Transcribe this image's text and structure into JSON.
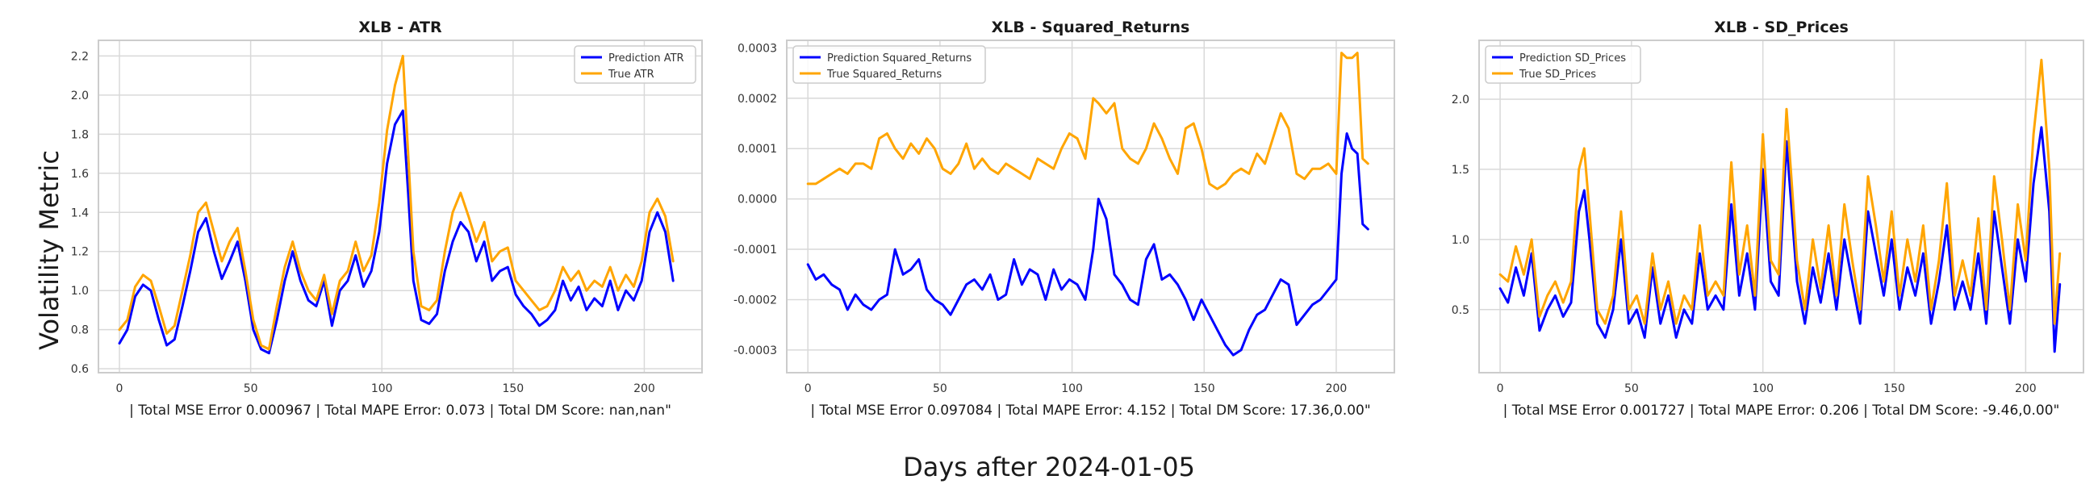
{
  "figure": {
    "ylabel": "Volatility Metric",
    "xlabel": "Days after 2024-01-05"
  },
  "colors": {
    "prediction": "#0000ff",
    "truth": "#ffa500",
    "grid": "#d9d9d9",
    "frame": "#cccccc"
  },
  "chart_data": [
    {
      "type": "line",
      "title": "XLB - ATR",
      "xlabel": "| Total MSE Error 0.000967 | Total MAPE Error: 0.073 | Total DM Score: nan,nan\"",
      "ylabel": "",
      "xlim": [
        -8,
        222
      ],
      "ylim": [
        0.58,
        2.28
      ],
      "xticks": [
        0,
        50,
        100,
        150,
        200
      ],
      "yticks": [
        0.6,
        0.8,
        1.0,
        1.2,
        1.4,
        1.6,
        1.8,
        2.0,
        2.2
      ],
      "ytick_decimals": 1,
      "grid": true,
      "legend_position": "top-right",
      "series": [
        {
          "name": "Prediction ATR",
          "color": "#0000ff",
          "x": [
            0,
            3,
            6,
            9,
            12,
            15,
            18,
            21,
            24,
            27,
            30,
            33,
            36,
            39,
            42,
            45,
            48,
            51,
            54,
            57,
            60,
            63,
            66,
            69,
            72,
            75,
            78,
            81,
            84,
            87,
            90,
            93,
            96,
            99,
            102,
            105,
            108,
            110,
            112,
            115,
            118,
            121,
            124,
            127,
            130,
            133,
            136,
            139,
            142,
            145,
            148,
            151,
            154,
            157,
            160,
            163,
            166,
            169,
            172,
            175,
            178,
            181,
            184,
            187,
            190,
            193,
            196,
            199,
            202,
            205,
            208,
            211
          ],
          "y": [
            0.73,
            0.8,
            0.97,
            1.03,
            1.0,
            0.85,
            0.72,
            0.75,
            0.92,
            1.1,
            1.3,
            1.37,
            1.2,
            1.06,
            1.15,
            1.25,
            1.05,
            0.8,
            0.7,
            0.68,
            0.85,
            1.05,
            1.2,
            1.05,
            0.95,
            0.92,
            1.05,
            0.82,
            1.0,
            1.05,
            1.18,
            1.02,
            1.1,
            1.3,
            1.65,
            1.85,
            1.92,
            1.5,
            1.05,
            0.85,
            0.83,
            0.88,
            1.1,
            1.25,
            1.35,
            1.3,
            1.15,
            1.25,
            1.05,
            1.1,
            1.12,
            0.98,
            0.92,
            0.88,
            0.82,
            0.85,
            0.9,
            1.05,
            0.95,
            1.02,
            0.9,
            0.96,
            0.92,
            1.05,
            0.9,
            1.0,
            0.95,
            1.05,
            1.3,
            1.4,
            1.3,
            1.05
          ]
        },
        {
          "name": "True ATR",
          "color": "#ffa500",
          "x": [
            0,
            3,
            6,
            9,
            12,
            15,
            18,
            21,
            24,
            27,
            30,
            33,
            36,
            39,
            42,
            45,
            48,
            51,
            54,
            57,
            60,
            63,
            66,
            69,
            72,
            75,
            78,
            81,
            84,
            87,
            90,
            93,
            96,
            99,
            102,
            105,
            108,
            110,
            112,
            115,
            118,
            121,
            124,
            127,
            130,
            133,
            136,
            139,
            142,
            145,
            148,
            151,
            154,
            157,
            160,
            163,
            166,
            169,
            172,
            175,
            178,
            181,
            184,
            187,
            190,
            193,
            196,
            199,
            202,
            205,
            208,
            211
          ],
          "y": [
            0.8,
            0.85,
            1.02,
            1.08,
            1.05,
            0.92,
            0.78,
            0.82,
            1.0,
            1.18,
            1.4,
            1.45,
            1.3,
            1.15,
            1.25,
            1.32,
            1.1,
            0.85,
            0.72,
            0.7,
            0.92,
            1.12,
            1.25,
            1.1,
            1.0,
            0.95,
            1.08,
            0.88,
            1.05,
            1.1,
            1.25,
            1.1,
            1.18,
            1.45,
            1.82,
            2.05,
            2.2,
            1.7,
            1.2,
            0.92,
            0.9,
            0.95,
            1.2,
            1.4,
            1.5,
            1.38,
            1.25,
            1.35,
            1.15,
            1.2,
            1.22,
            1.05,
            1.0,
            0.95,
            0.9,
            0.92,
            1.0,
            1.12,
            1.05,
            1.1,
            1.0,
            1.05,
            1.02,
            1.12,
            1.0,
            1.08,
            1.02,
            1.15,
            1.4,
            1.47,
            1.38,
            1.15
          ]
        }
      ]
    },
    {
      "type": "line",
      "title": "XLB - Squared_Returns",
      "xlabel": "| Total MSE Error 0.097084 | Total MAPE Error: 4.152 | Total DM Score: 17.36,0.00\"",
      "ylabel": "",
      "xlim": [
        -8,
        222
      ],
      "ylim": [
        -0.000345,
        0.000315
      ],
      "xticks": [
        0,
        50,
        100,
        150,
        200
      ],
      "yticks": [
        -0.0003,
        -0.0002,
        -0.0001,
        0.0,
        0.0001,
        0.0002,
        0.0003
      ],
      "ytick_decimals": 4,
      "grid": true,
      "legend_position": "top-left",
      "series": [
        {
          "name": "Prediction Squared_Returns",
          "color": "#0000ff",
          "x": [
            0,
            3,
            6,
            9,
            12,
            15,
            18,
            21,
            24,
            27,
            30,
            33,
            36,
            39,
            42,
            45,
            48,
            51,
            54,
            57,
            60,
            63,
            66,
            69,
            72,
            75,
            78,
            81,
            84,
            87,
            90,
            93,
            96,
            99,
            102,
            105,
            108,
            110,
            113,
            116,
            119,
            122,
            125,
            128,
            131,
            134,
            137,
            140,
            143,
            146,
            149,
            152,
            155,
            158,
            161,
            164,
            167,
            170,
            173,
            176,
            179,
            182,
            185,
            188,
            191,
            194,
            197,
            200,
            202,
            204,
            206,
            208,
            210,
            212
          ],
          "y": [
            -0.00013,
            -0.00016,
            -0.00015,
            -0.00017,
            -0.00018,
            -0.00022,
            -0.00019,
            -0.00021,
            -0.00022,
            -0.0002,
            -0.00019,
            -0.0001,
            -0.00015,
            -0.00014,
            -0.00012,
            -0.00018,
            -0.0002,
            -0.00021,
            -0.00023,
            -0.0002,
            -0.00017,
            -0.00016,
            -0.00018,
            -0.00015,
            -0.0002,
            -0.00019,
            -0.00012,
            -0.00017,
            -0.00014,
            -0.00015,
            -0.0002,
            -0.00014,
            -0.00018,
            -0.00016,
            -0.00017,
            -0.0002,
            -0.0001,
            0.0,
            -4e-05,
            -0.00015,
            -0.00017,
            -0.0002,
            -0.00021,
            -0.00012,
            -9e-05,
            -0.00016,
            -0.00015,
            -0.00017,
            -0.0002,
            -0.00024,
            -0.0002,
            -0.00023,
            -0.00026,
            -0.00029,
            -0.00031,
            -0.0003,
            -0.00026,
            -0.00023,
            -0.00022,
            -0.00019,
            -0.00016,
            -0.00017,
            -0.00025,
            -0.00023,
            -0.00021,
            -0.0002,
            -0.00018,
            -0.00016,
            5e-05,
            0.00013,
            0.0001,
            9e-05,
            -5e-05,
            -6e-05
          ]
        },
        {
          "name": "True Squared_Returns",
          "color": "#ffa500",
          "x": [
            0,
            3,
            6,
            9,
            12,
            15,
            18,
            21,
            24,
            27,
            30,
            33,
            36,
            39,
            42,
            45,
            48,
            51,
            54,
            57,
            60,
            63,
            66,
            69,
            72,
            75,
            78,
            81,
            84,
            87,
            90,
            93,
            96,
            99,
            102,
            105,
            108,
            110,
            113,
            116,
            119,
            122,
            125,
            128,
            131,
            134,
            137,
            140,
            143,
            146,
            149,
            152,
            155,
            158,
            161,
            164,
            167,
            170,
            173,
            176,
            179,
            182,
            185,
            188,
            191,
            194,
            197,
            200,
            202,
            204,
            206,
            208,
            210,
            212
          ],
          "y": [
            3e-05,
            3e-05,
            4e-05,
            5e-05,
            6e-05,
            5e-05,
            7e-05,
            7e-05,
            6e-05,
            0.00012,
            0.00013,
            0.0001,
            8e-05,
            0.00011,
            9e-05,
            0.00012,
            0.0001,
            6e-05,
            5e-05,
            7e-05,
            0.00011,
            6e-05,
            8e-05,
            6e-05,
            5e-05,
            7e-05,
            6e-05,
            5e-05,
            4e-05,
            8e-05,
            7e-05,
            6e-05,
            0.0001,
            0.00013,
            0.00012,
            8e-05,
            0.0002,
            0.00019,
            0.00017,
            0.00019,
            0.0001,
            8e-05,
            7e-05,
            0.0001,
            0.00015,
            0.00012,
            8e-05,
            5e-05,
            0.00014,
            0.00015,
            0.0001,
            3e-05,
            2e-05,
            3e-05,
            5e-05,
            6e-05,
            5e-05,
            9e-05,
            7e-05,
            0.00012,
            0.00017,
            0.00014,
            5e-05,
            4e-05,
            6e-05,
            6e-05,
            7e-05,
            5e-05,
            0.00029,
            0.00028,
            0.00028,
            0.00029,
            8e-05,
            7e-05
          ]
        }
      ]
    },
    {
      "type": "line",
      "title": "XLB - SD_Prices",
      "xlabel": "| Total MSE Error 0.001727 | Total MAPE Error: 0.206 | Total DM Score: -9.46,0.00\"",
      "ylabel": "",
      "xlim": [
        -8,
        222
      ],
      "ylim": [
        0.05,
        2.42
      ],
      "xticks": [
        0,
        50,
        100,
        150,
        200
      ],
      "yticks": [
        0.5,
        1.0,
        1.5,
        2.0
      ],
      "ytick_decimals": 1,
      "grid": true,
      "legend_position": "top-left",
      "series": [
        {
          "name": "Prediction SD_Prices",
          "color": "#0000ff",
          "x": [
            0,
            3,
            6,
            9,
            12,
            15,
            18,
            21,
            24,
            27,
            30,
            32,
            34,
            37,
            40,
            43,
            46,
            49,
            52,
            55,
            58,
            61,
            64,
            67,
            70,
            73,
            76,
            79,
            82,
            85,
            88,
            91,
            94,
            97,
            100,
            103,
            106,
            109,
            111,
            113,
            116,
            119,
            122,
            125,
            128,
            131,
            134,
            137,
            140,
            143,
            146,
            149,
            152,
            155,
            158,
            161,
            164,
            167,
            170,
            173,
            176,
            179,
            182,
            185,
            188,
            191,
            194,
            197,
            200,
            203,
            206,
            209,
            211,
            213
          ],
          "y": [
            0.65,
            0.55,
            0.8,
            0.6,
            0.9,
            0.35,
            0.5,
            0.6,
            0.45,
            0.55,
            1.2,
            1.35,
            1.0,
            0.4,
            0.3,
            0.5,
            1.0,
            0.4,
            0.5,
            0.3,
            0.8,
            0.4,
            0.6,
            0.3,
            0.5,
            0.4,
            0.9,
            0.5,
            0.6,
            0.5,
            1.25,
            0.6,
            0.9,
            0.5,
            1.5,
            0.7,
            0.6,
            1.7,
            1.2,
            0.7,
            0.4,
            0.8,
            0.55,
            0.9,
            0.5,
            1.0,
            0.7,
            0.4,
            1.2,
            0.9,
            0.6,
            1.0,
            0.5,
            0.8,
            0.6,
            0.9,
            0.4,
            0.7,
            1.1,
            0.5,
            0.7,
            0.5,
            0.9,
            0.4,
            1.2,
            0.8,
            0.4,
            1.0,
            0.7,
            1.4,
            1.8,
            1.2,
            0.2,
            0.68
          ]
        },
        {
          "name": "True SD_Prices",
          "color": "#ffa500",
          "x": [
            0,
            3,
            6,
            9,
            12,
            15,
            18,
            21,
            24,
            27,
            30,
            32,
            34,
            37,
            40,
            43,
            46,
            49,
            52,
            55,
            58,
            61,
            64,
            67,
            70,
            73,
            76,
            79,
            82,
            85,
            88,
            91,
            94,
            97,
            100,
            103,
            106,
            109,
            111,
            113,
            116,
            119,
            122,
            125,
            128,
            131,
            134,
            137,
            140,
            143,
            146,
            149,
            152,
            155,
            158,
            161,
            164,
            167,
            170,
            173,
            176,
            179,
            182,
            185,
            188,
            191,
            194,
            197,
            200,
            203,
            206,
            209,
            211,
            213
          ],
          "y": [
            0.75,
            0.7,
            0.95,
            0.75,
            1.0,
            0.45,
            0.6,
            0.7,
            0.55,
            0.7,
            1.5,
            1.65,
            1.2,
            0.5,
            0.4,
            0.6,
            1.2,
            0.5,
            0.6,
            0.4,
            0.9,
            0.5,
            0.7,
            0.4,
            0.6,
            0.5,
            1.1,
            0.6,
            0.7,
            0.6,
            1.55,
            0.75,
            1.1,
            0.6,
            1.75,
            0.85,
            0.75,
            1.93,
            1.4,
            0.85,
            0.5,
            1.0,
            0.65,
            1.1,
            0.6,
            1.25,
            0.85,
            0.5,
            1.45,
            1.1,
            0.7,
            1.2,
            0.6,
            1.0,
            0.7,
            1.1,
            0.5,
            0.85,
            1.4,
            0.6,
            0.85,
            0.6,
            1.15,
            0.5,
            1.45,
            1.0,
            0.5,
            1.25,
            0.85,
            1.75,
            2.28,
            1.5,
            0.4,
            0.9
          ]
        }
      ]
    }
  ]
}
